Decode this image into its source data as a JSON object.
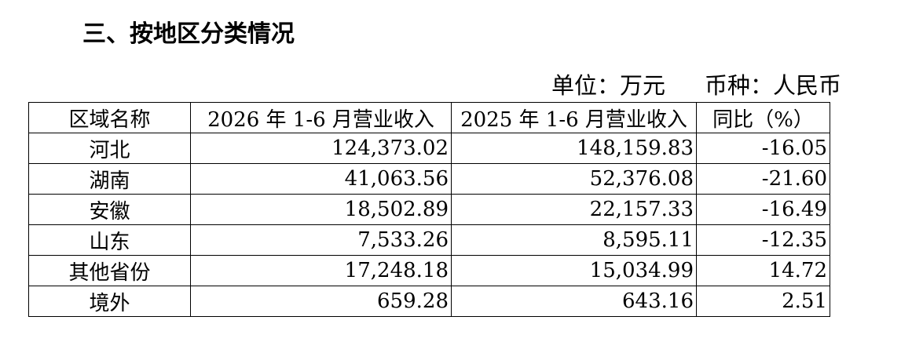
{
  "header": {
    "title": "三、按地区分类情况",
    "unit": "单位：万元",
    "currency": "币种：人民币"
  },
  "table": {
    "columns": [
      "区域名称",
      "2026 年 1-6 月营业收入",
      "2025 年 1-6 月营业收入",
      "同比（%）"
    ],
    "rows": [
      [
        "河北",
        "124,373.02",
        "148,159.83",
        "-16.05"
      ],
      [
        "湖南",
        "41,063.56",
        "52,376.08",
        "-21.60"
      ],
      [
        "安徽",
        "18,502.89",
        "22,157.33",
        "-16.49"
      ],
      [
        "山东",
        "7,533.26",
        "8,595.11",
        "-12.35"
      ],
      [
        "其他省份",
        "17,248.18",
        "15,034.99",
        "14.72"
      ],
      [
        "境外",
        "659.28",
        "643.16",
        "2.51"
      ]
    ]
  }
}
